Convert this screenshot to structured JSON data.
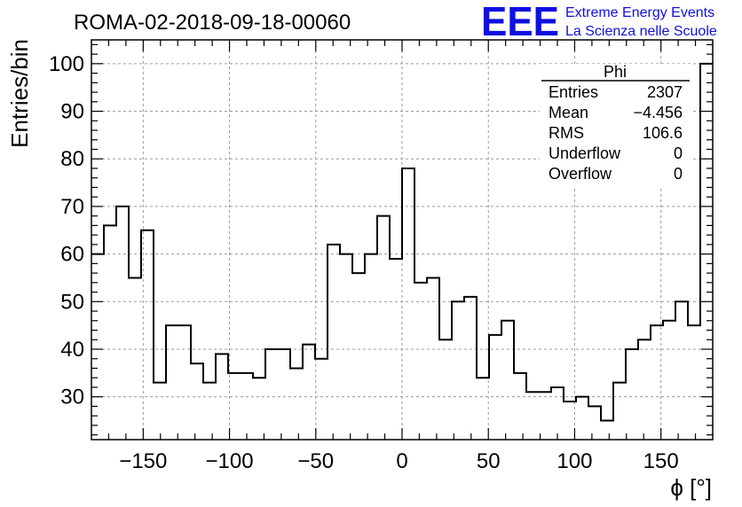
{
  "chart_data": {
    "type": "histogram",
    "title": "ROMA-02-2018-09-18-00060",
    "xlabel": "ϕ [°]",
    "ylabel": "Entries/bin",
    "xlim": [
      -180,
      180
    ],
    "ylim": [
      21,
      105
    ],
    "bin_width": 7.2,
    "x_ticks": [
      -150,
      -100,
      -50,
      0,
      50,
      100,
      150
    ],
    "x_tick_labels": [
      "−150",
      "−100",
      "−50",
      "0",
      "50",
      "100",
      "150"
    ],
    "y_ticks": [
      30,
      40,
      50,
      60,
      70,
      80,
      90,
      100
    ],
    "y_tick_labels": [
      "30",
      "40",
      "50",
      "60",
      "70",
      "80",
      "90",
      "100"
    ],
    "grid": true,
    "values": [
      60,
      66,
      70,
      55,
      65,
      33,
      45,
      45,
      37,
      33,
      39,
      35,
      35,
      34,
      40,
      40,
      36,
      41,
      38,
      62,
      60,
      56,
      60,
      68,
      59,
      78,
      54,
      55,
      42,
      50,
      51,
      34,
      43,
      46,
      35,
      31,
      31,
      32,
      29,
      30,
      28,
      25,
      33,
      40,
      42,
      45,
      46,
      50,
      45,
      100
    ],
    "stats_box": {
      "title": "Phi",
      "rows": [
        {
          "label": "Entries",
          "value": "2307"
        },
        {
          "label": "Mean",
          "value": "−4.456"
        },
        {
          "label": "RMS",
          "value": "106.6"
        },
        {
          "label": "Underflow",
          "value": "0"
        },
        {
          "label": "Overflow",
          "value": "0"
        }
      ]
    }
  },
  "logo": {
    "mark": "EEE",
    "line1": "Extreme Energy Events",
    "line2": "La Scienza nelle Scuole",
    "color": "#1010e0"
  }
}
